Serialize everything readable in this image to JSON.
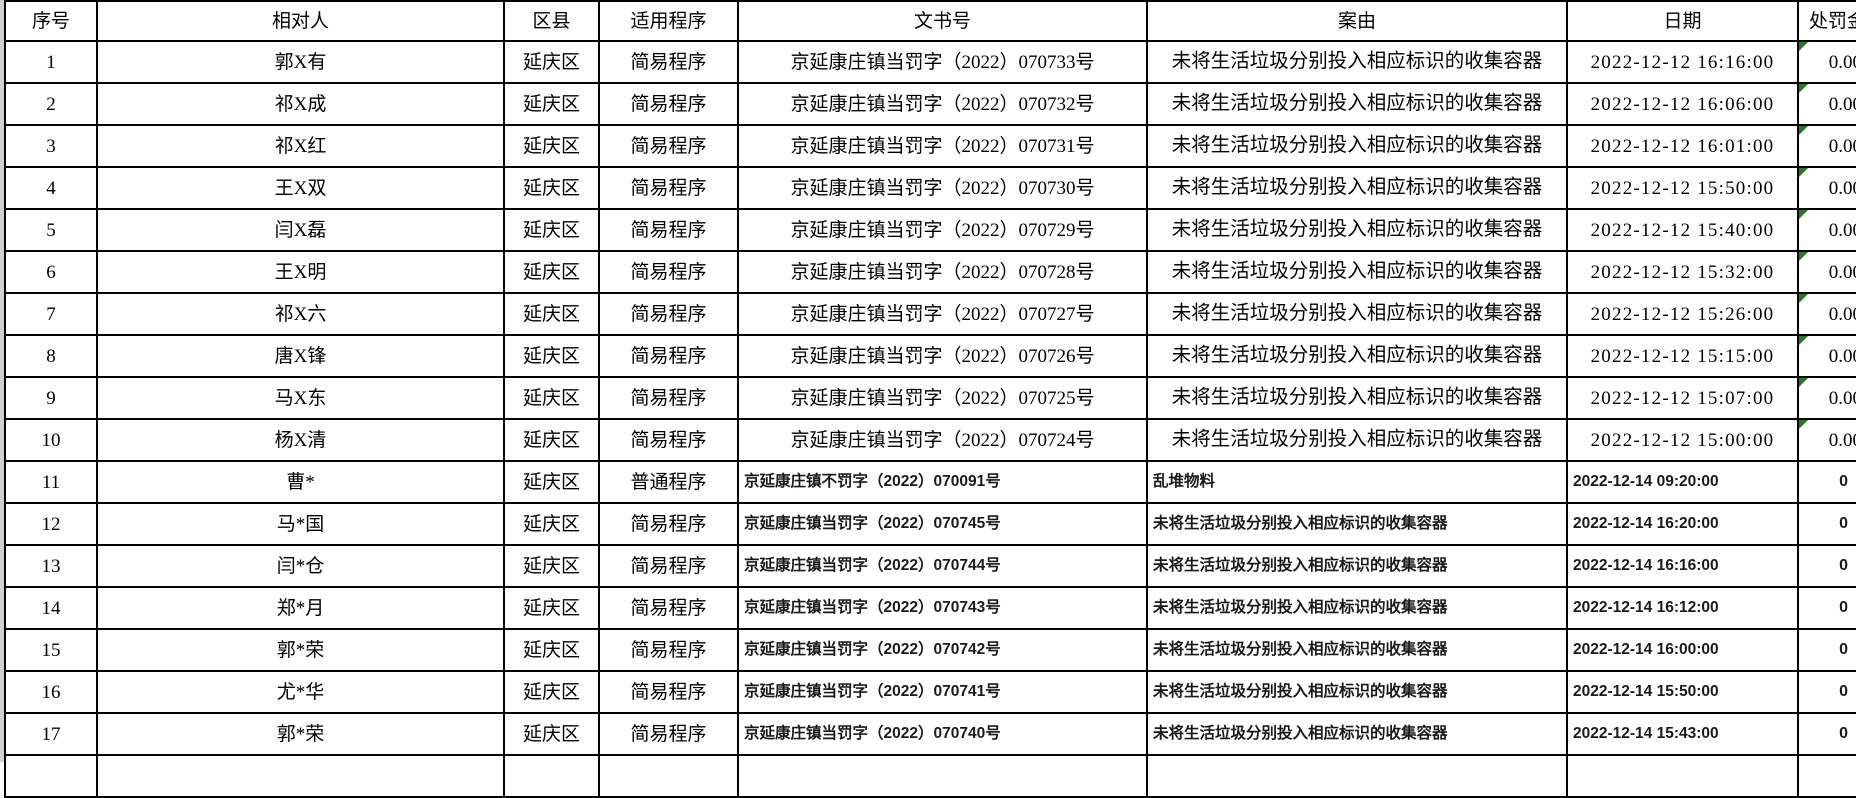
{
  "app": {
    "description_colors": {
      "grid_border": "#000000",
      "background": "#ffffff",
      "error_indicator_green": "#1e7e1e",
      "left_edge_strip": "#cfcfcf"
    }
  },
  "table": {
    "columns": [
      {
        "key": "no",
        "label": "序号"
      },
      {
        "key": "name",
        "label": "相对人"
      },
      {
        "key": "district",
        "label": "区县"
      },
      {
        "key": "procedure",
        "label": "适用程序"
      },
      {
        "key": "doc",
        "label": "文书号"
      },
      {
        "key": "reason",
        "label": "案由"
      },
      {
        "key": "date",
        "label": "日期"
      },
      {
        "key": "penalty",
        "label": "处罚金额"
      }
    ],
    "rows": [
      {
        "no": "1",
        "name": "郭X有",
        "district": "延庆区",
        "procedure": "简易程序",
        "doc": "京延康庄镇当罚字（2022）070733号",
        "reason": "未将生活垃圾分别投入相应标识的收集容器",
        "date": "2022-12-12 16:16:00",
        "penalty": "0.00",
        "style": "A",
        "indicator": true
      },
      {
        "no": "2",
        "name": "祁X成",
        "district": "延庆区",
        "procedure": "简易程序",
        "doc": "京延康庄镇当罚字（2022）070732号",
        "reason": "未将生活垃圾分别投入相应标识的收集容器",
        "date": "2022-12-12 16:06:00",
        "penalty": "0.00",
        "style": "A",
        "indicator": true
      },
      {
        "no": "3",
        "name": "祁X红",
        "district": "延庆区",
        "procedure": "简易程序",
        "doc": "京延康庄镇当罚字（2022）070731号",
        "reason": "未将生活垃圾分别投入相应标识的收集容器",
        "date": "2022-12-12 16:01:00",
        "penalty": "0.00",
        "style": "A",
        "indicator": true
      },
      {
        "no": "4",
        "name": "王X双",
        "district": "延庆区",
        "procedure": "简易程序",
        "doc": "京延康庄镇当罚字（2022）070730号",
        "reason": "未将生活垃圾分别投入相应标识的收集容器",
        "date": "2022-12-12 15:50:00",
        "penalty": "0.00",
        "style": "A",
        "indicator": true
      },
      {
        "no": "5",
        "name": "闫X磊",
        "district": "延庆区",
        "procedure": "简易程序",
        "doc": "京延康庄镇当罚字（2022）070729号",
        "reason": "未将生活垃圾分别投入相应标识的收集容器",
        "date": "2022-12-12 15:40:00",
        "penalty": "0.00",
        "style": "A",
        "indicator": true
      },
      {
        "no": "6",
        "name": "王X明",
        "district": "延庆区",
        "procedure": "简易程序",
        "doc": "京延康庄镇当罚字（2022）070728号",
        "reason": "未将生活垃圾分别投入相应标识的收集容器",
        "date": "2022-12-12 15:32:00",
        "penalty": "0.00",
        "style": "A",
        "indicator": true
      },
      {
        "no": "7",
        "name": "祁X六",
        "district": "延庆区",
        "procedure": "简易程序",
        "doc": "京延康庄镇当罚字（2022）070727号",
        "reason": "未将生活垃圾分别投入相应标识的收集容器",
        "date": "2022-12-12 15:26:00",
        "penalty": "0.00",
        "style": "A",
        "indicator": true
      },
      {
        "no": "8",
        "name": "唐X锋",
        "district": "延庆区",
        "procedure": "简易程序",
        "doc": "京延康庄镇当罚字（2022）070726号",
        "reason": "未将生活垃圾分别投入相应标识的收集容器",
        "date": "2022-12-12 15:15:00",
        "penalty": "0.00",
        "style": "A",
        "indicator": true
      },
      {
        "no": "9",
        "name": "马X东",
        "district": "延庆区",
        "procedure": "简易程序",
        "doc": "京延康庄镇当罚字（2022）070725号",
        "reason": "未将生活垃圾分别投入相应标识的收集容器",
        "date": "2022-12-12 15:07:00",
        "penalty": "0.00",
        "style": "A",
        "indicator": true
      },
      {
        "no": "10",
        "name": "杨X清",
        "district": "延庆区",
        "procedure": "简易程序",
        "doc": "京延康庄镇当罚字（2022）070724号",
        "reason": "未将生活垃圾分别投入相应标识的收集容器",
        "date": "2022-12-12 15:00:00",
        "penalty": "0.00",
        "style": "A",
        "indicator": true
      },
      {
        "no": "11",
        "name": "曹*",
        "district": "延庆区",
        "procedure": "普通程序",
        "doc": "京延康庄镇不罚字（2022）070091号",
        "reason": "乱堆物料",
        "date": "2022-12-14 09:20:00",
        "penalty": "0",
        "style": "B",
        "indicator": false
      },
      {
        "no": "12",
        "name": "马*国",
        "district": "延庆区",
        "procedure": "简易程序",
        "doc": "京延康庄镇当罚字（2022）070745号",
        "reason": "未将生活垃圾分别投入相应标识的收集容器",
        "date": "2022-12-14 16:20:00",
        "penalty": "0",
        "style": "B",
        "indicator": false
      },
      {
        "no": "13",
        "name": "闫*仓",
        "district": "延庆区",
        "procedure": "简易程序",
        "doc": "京延康庄镇当罚字（2022）070744号",
        "reason": "未将生活垃圾分别投入相应标识的收集容器",
        "date": "2022-12-14 16:16:00",
        "penalty": "0",
        "style": "B",
        "indicator": false
      },
      {
        "no": "14",
        "name": "郑*月",
        "district": "延庆区",
        "procedure": "简易程序",
        "doc": "京延康庄镇当罚字（2022）070743号",
        "reason": "未将生活垃圾分别投入相应标识的收集容器",
        "date": "2022-12-14 16:12:00",
        "penalty": "0",
        "style": "B",
        "indicator": false
      },
      {
        "no": "15",
        "name": "郭*荣",
        "district": "延庆区",
        "procedure": "简易程序",
        "doc": "京延康庄镇当罚字（2022）070742号",
        "reason": "未将生活垃圾分别投入相应标识的收集容器",
        "date": "2022-12-14 16:00:00",
        "penalty": "0",
        "style": "B",
        "indicator": false
      },
      {
        "no": "16",
        "name": "尤*华",
        "district": "延庆区",
        "procedure": "简易程序",
        "doc": "京延康庄镇当罚字（2022）070741号",
        "reason": "未将生活垃圾分别投入相应标识的收集容器",
        "date": "2022-12-14 15:50:00",
        "penalty": "0",
        "style": "B",
        "indicator": false
      },
      {
        "no": "17",
        "name": "郭*荣",
        "district": "延庆区",
        "procedure": "简易程序",
        "doc": "京延康庄镇当罚字（2022）070740号",
        "reason": "未将生活垃圾分别投入相应标识的收集容器",
        "date": "2022-12-14 15:43:00",
        "penalty": "0",
        "style": "B",
        "indicator": false
      },
      {
        "no": "",
        "name": "",
        "district": "",
        "procedure": "",
        "doc": "",
        "reason": "",
        "date": "",
        "penalty": "",
        "style": "A",
        "indicator": false
      }
    ]
  }
}
